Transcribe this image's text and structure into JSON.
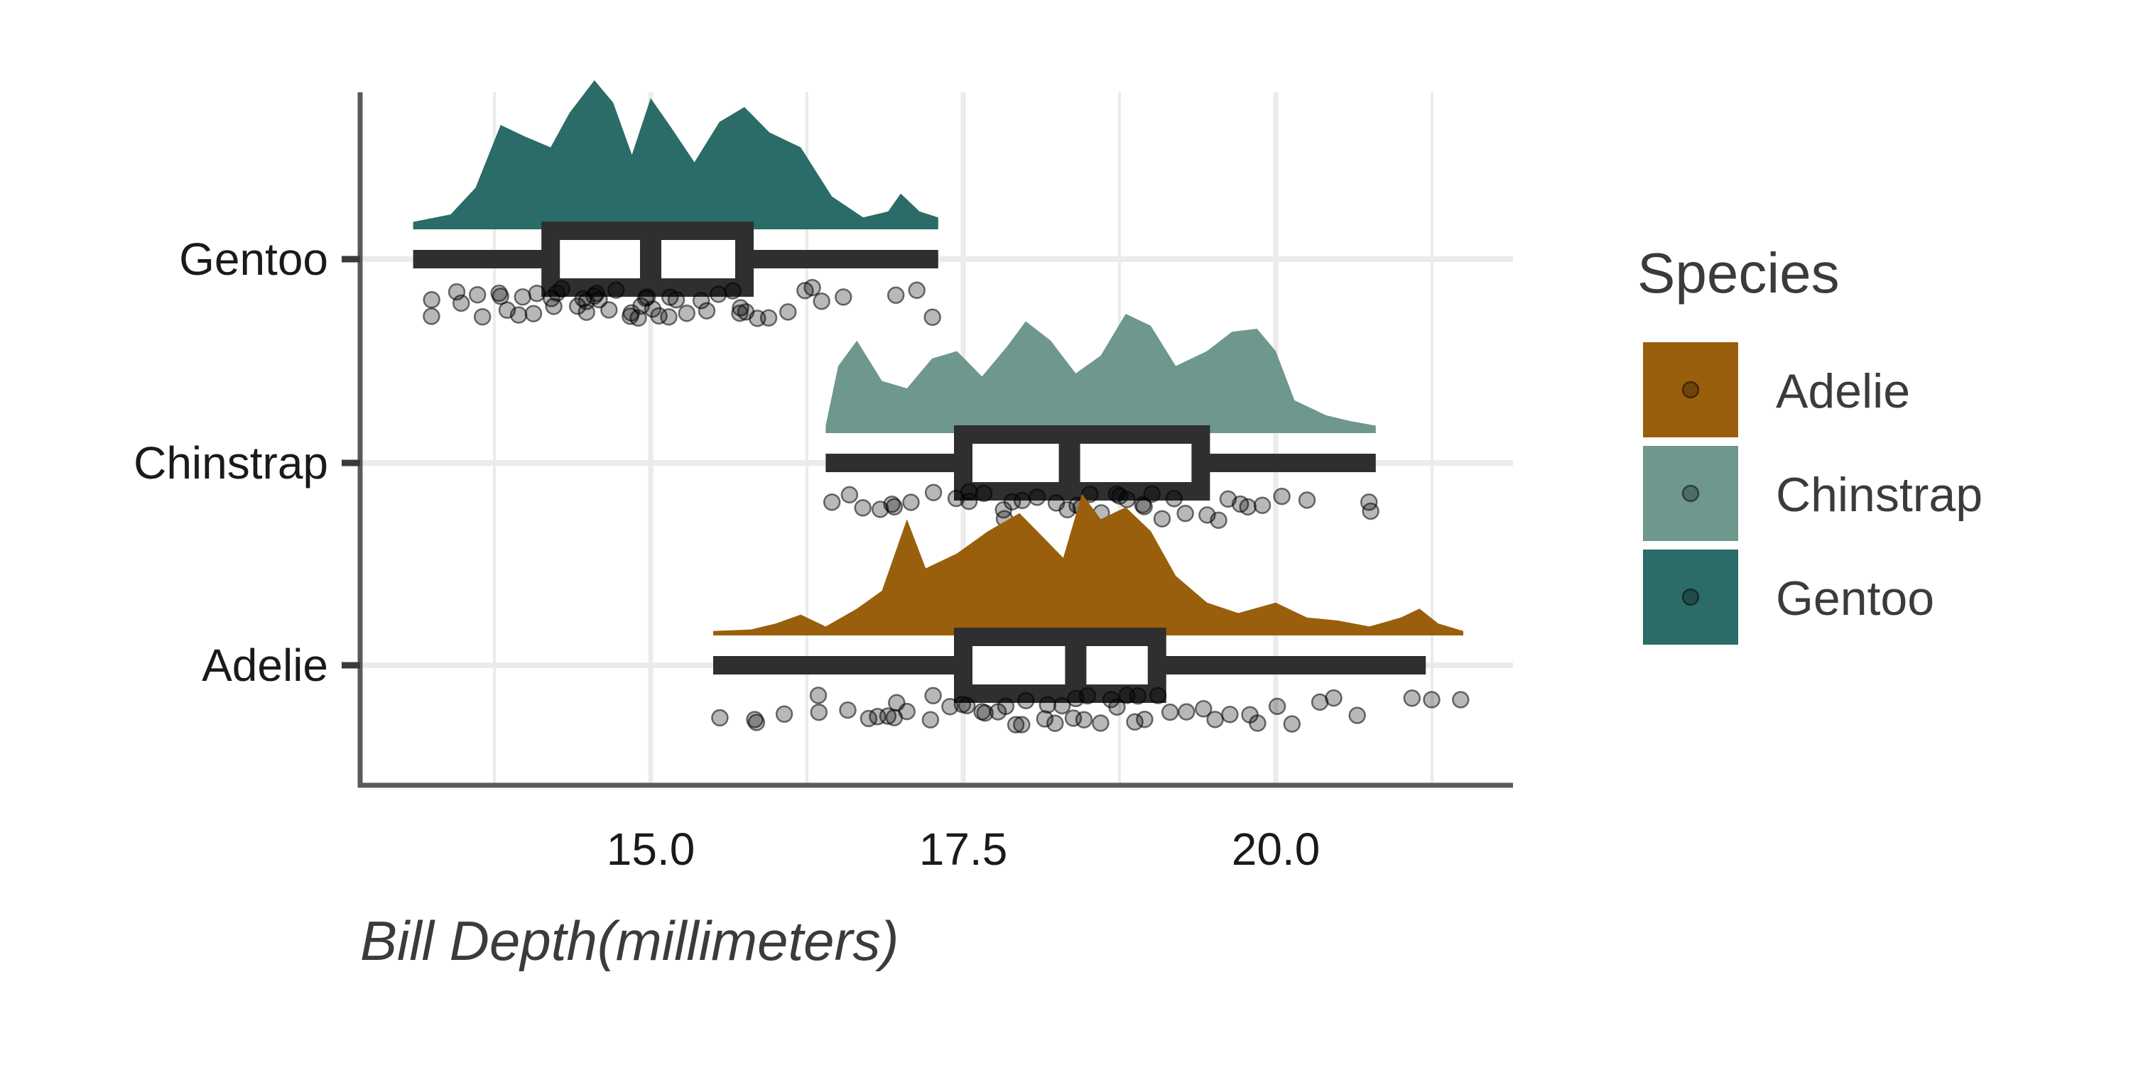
{
  "chart_data": {
    "type": "raincloud",
    "xlabel": "Bill Depth(millimeters)",
    "ylabel": "",
    "xlim": [
      13.0,
      21.9
    ],
    "x_ticks": [
      15.0,
      17.5,
      20.0
    ],
    "x_tick_labels": [
      "15.0",
      "17.5",
      "20.0"
    ],
    "x_minor_gridlines": [
      13.75,
      16.25,
      18.75,
      21.25
    ],
    "categories": [
      "Gentoo",
      "Chinstrap",
      "Adelie"
    ],
    "grid": true,
    "legend": {
      "title": "Species",
      "placement": "right",
      "entries": [
        "Adelie",
        "Chinstrap",
        "Gentoo"
      ]
    },
    "series": [
      {
        "name": "Gentoo",
        "color": "#2b6b68",
        "min": 13.1,
        "q1": 14.2,
        "median": 15.0,
        "q3": 15.75,
        "max": 17.3,
        "density": [
          [
            13.1,
            0.05
          ],
          [
            13.4,
            0.1
          ],
          [
            13.6,
            0.28
          ],
          [
            13.8,
            0.7
          ],
          [
            14.0,
            0.62
          ],
          [
            14.2,
            0.55
          ],
          [
            14.35,
            0.78
          ],
          [
            14.55,
            1.0
          ],
          [
            14.7,
            0.85
          ],
          [
            14.85,
            0.5
          ],
          [
            15.0,
            0.88
          ],
          [
            15.15,
            0.7
          ],
          [
            15.35,
            0.45
          ],
          [
            15.55,
            0.72
          ],
          [
            15.75,
            0.82
          ],
          [
            15.95,
            0.65
          ],
          [
            16.2,
            0.55
          ],
          [
            16.45,
            0.22
          ],
          [
            16.7,
            0.08
          ],
          [
            16.9,
            0.12
          ],
          [
            17.0,
            0.24
          ],
          [
            17.15,
            0.12
          ],
          [
            17.3,
            0.08
          ]
        ],
        "points": [
          13.2,
          13.3,
          13.4,
          13.5,
          13.6,
          13.7,
          13.8,
          13.8,
          13.9,
          14.0,
          14.0,
          14.1,
          14.1,
          14.2,
          14.2,
          14.3,
          14.3,
          14.4,
          14.4,
          14.5,
          14.5,
          14.5,
          14.6,
          14.6,
          14.7,
          14.7,
          14.8,
          14.8,
          14.9,
          14.9,
          15.0,
          15.0,
          15.0,
          15.1,
          15.1,
          15.2,
          15.2,
          15.3,
          15.4,
          15.5,
          15.5,
          15.6,
          15.7,
          15.7,
          15.8,
          15.9,
          16.0,
          16.1,
          16.2,
          16.3,
          16.4,
          16.6,
          17.0,
          17.1,
          17.3
        ]
      },
      {
        "name": "Chinstrap",
        "color": "#6e978d",
        "min": 16.4,
        "q1": 17.5,
        "median": 18.35,
        "q3": 19.4,
        "max": 20.8,
        "density": [
          [
            16.4,
            0.05
          ],
          [
            16.5,
            0.45
          ],
          [
            16.65,
            0.62
          ],
          [
            16.85,
            0.35
          ],
          [
            17.05,
            0.3
          ],
          [
            17.25,
            0.5
          ],
          [
            17.45,
            0.55
          ],
          [
            17.65,
            0.38
          ],
          [
            17.85,
            0.58
          ],
          [
            18.0,
            0.75
          ],
          [
            18.2,
            0.62
          ],
          [
            18.4,
            0.4
          ],
          [
            18.6,
            0.52
          ],
          [
            18.8,
            0.8
          ],
          [
            19.0,
            0.72
          ],
          [
            19.2,
            0.45
          ],
          [
            19.45,
            0.55
          ],
          [
            19.65,
            0.68
          ],
          [
            19.85,
            0.7
          ],
          [
            20.0,
            0.55
          ],
          [
            20.15,
            0.22
          ],
          [
            20.4,
            0.12
          ],
          [
            20.6,
            0.08
          ],
          [
            20.8,
            0.05
          ]
        ],
        "points": [
          16.4,
          16.6,
          16.7,
          16.8,
          16.9,
          17.0,
          17.1,
          17.3,
          17.4,
          17.5,
          17.6,
          17.7,
          17.8,
          17.8,
          17.9,
          18.0,
          18.1,
          18.2,
          18.3,
          18.4,
          18.4,
          18.5,
          18.6,
          18.7,
          18.8,
          18.8,
          18.9,
          19.0,
          19.0,
          19.1,
          19.2,
          19.3,
          19.4,
          19.5,
          19.6,
          19.7,
          19.8,
          19.9,
          20.0,
          20.3,
          20.7,
          20.8
        ]
      },
      {
        "name": "Adelie",
        "color": "#9a5f0c",
        "min": 15.5,
        "q1": 17.5,
        "median": 18.4,
        "q3": 19.05,
        "max": 21.2,
        "density": [
          [
            15.5,
            0.03
          ],
          [
            15.8,
            0.04
          ],
          [
            16.0,
            0.08
          ],
          [
            16.2,
            0.14
          ],
          [
            16.4,
            0.06
          ],
          [
            16.65,
            0.18
          ],
          [
            16.85,
            0.3
          ],
          [
            17.05,
            0.78
          ],
          [
            17.2,
            0.45
          ],
          [
            17.45,
            0.55
          ],
          [
            17.7,
            0.7
          ],
          [
            17.95,
            0.82
          ],
          [
            18.15,
            0.65
          ],
          [
            18.3,
            0.52
          ],
          [
            18.45,
            0.95
          ],
          [
            18.6,
            0.78
          ],
          [
            18.8,
            0.86
          ],
          [
            19.0,
            0.7
          ],
          [
            19.2,
            0.4
          ],
          [
            19.45,
            0.22
          ],
          [
            19.7,
            0.15
          ],
          [
            20.0,
            0.22
          ],
          [
            20.25,
            0.12
          ],
          [
            20.5,
            0.1
          ],
          [
            20.75,
            0.06
          ],
          [
            21.0,
            0.12
          ],
          [
            21.15,
            0.18
          ],
          [
            21.3,
            0.08
          ],
          [
            21.5,
            0.03
          ]
        ],
        "points": [
          15.5,
          15.8,
          15.9,
          16.1,
          16.3,
          16.4,
          16.6,
          16.7,
          16.8,
          16.9,
          17.0,
          17.0,
          17.1,
          17.2,
          17.3,
          17.4,
          17.5,
          17.5,
          17.6,
          17.7,
          17.8,
          17.8,
          17.9,
          18.0,
          18.0,
          18.1,
          18.2,
          18.2,
          18.3,
          18.4,
          18.4,
          18.5,
          18.5,
          18.6,
          18.7,
          18.7,
          18.8,
          18.9,
          18.9,
          19.0,
          19.1,
          19.2,
          19.3,
          19.4,
          19.5,
          19.6,
          19.8,
          19.9,
          20.0,
          20.1,
          20.3,
          20.5,
          20.6,
          21.1,
          21.2,
          21.5
        ]
      }
    ]
  }
}
